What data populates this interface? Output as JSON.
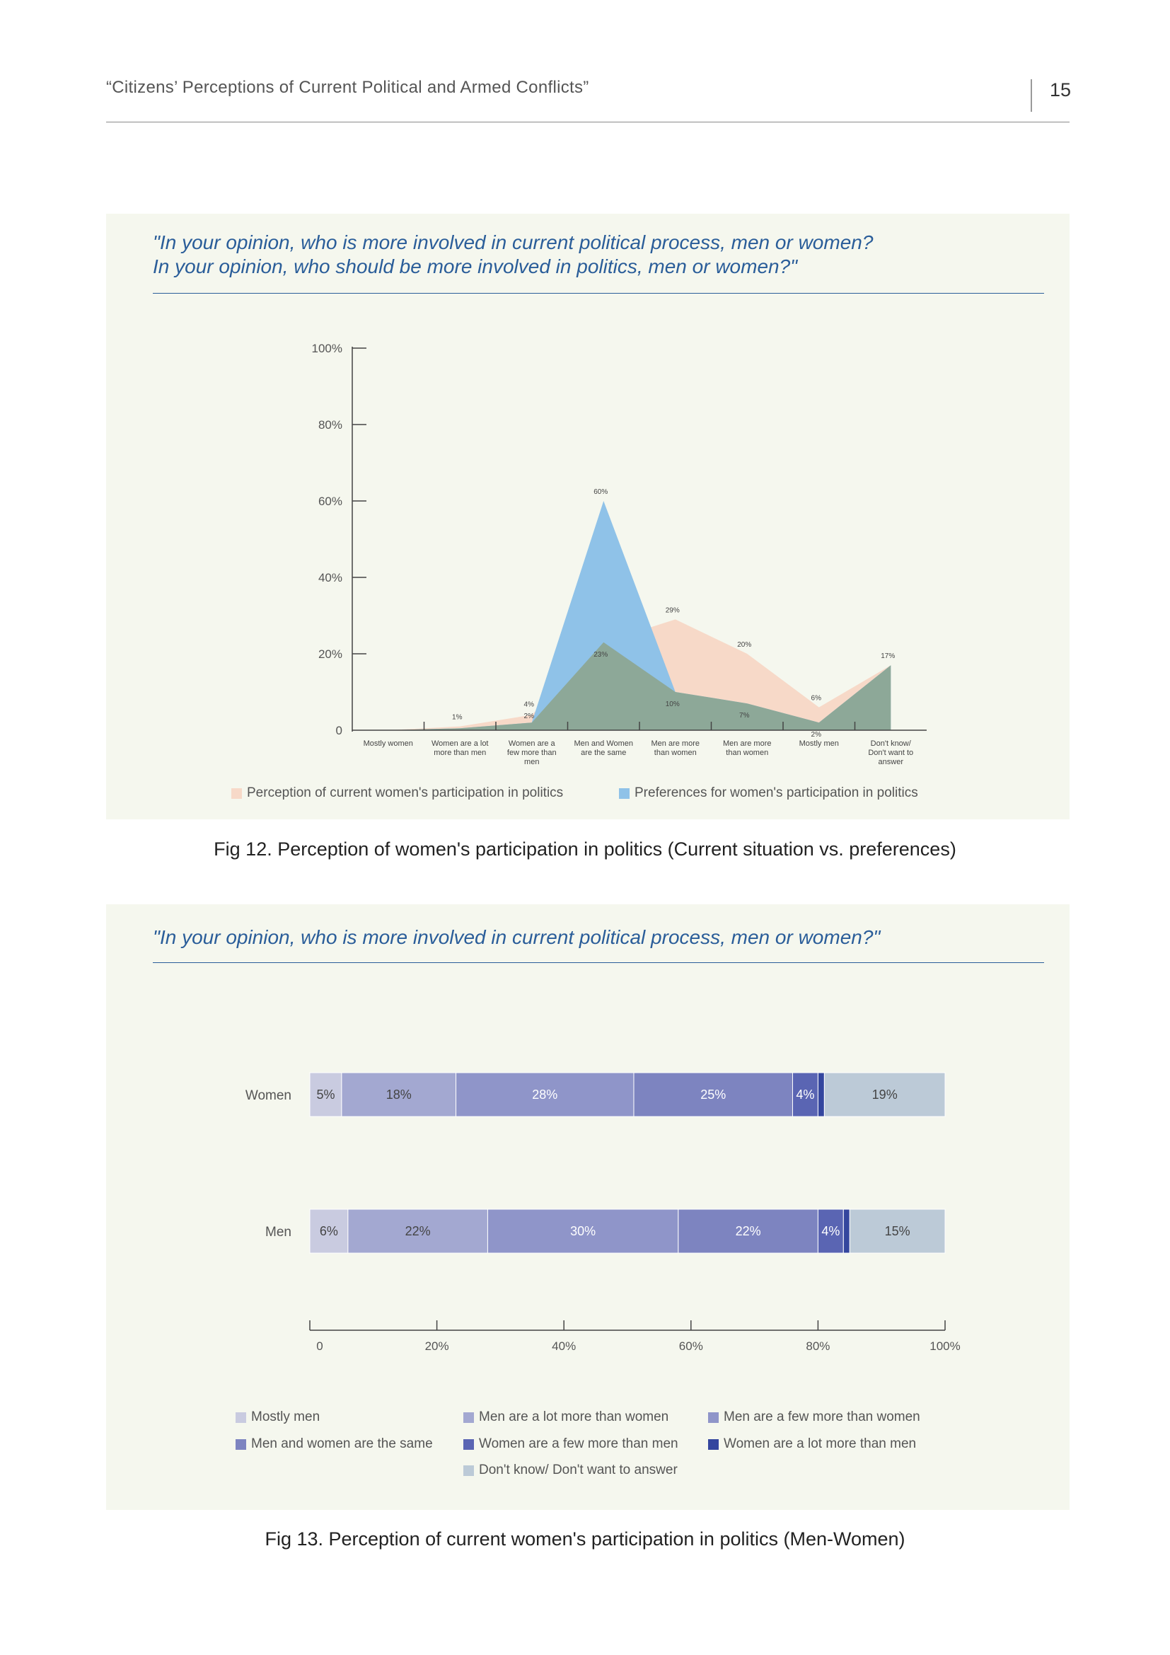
{
  "header": {
    "title": "“Citizens’ Perceptions of Current Political and Armed Conflicts”",
    "page_number": "15"
  },
  "fig12": {
    "question_line1": "\"In your opinion, who is more involved in current political process, men or women?",
    "question_line2": "In your opinion, who should be more involved in politics, men or women?\"",
    "caption": "Fig 12. Perception of women's participation in politics (Current situation vs. preferences)"
  },
  "fig13": {
    "question": "\"In your opinion, who is more involved in current political process, men or women?\"",
    "caption": "Fig 13. Perception of current women's participation in politics (Men-Women)"
  },
  "chart_data": [
    {
      "type": "area",
      "ylim": [
        0,
        100
      ],
      "yticks": [
        "100%",
        "80%",
        "60%",
        "40%",
        "20%",
        "0"
      ],
      "ytick_values": [
        100,
        80,
        60,
        40,
        20,
        0
      ],
      "categories": [
        [
          "Mostly women"
        ],
        [
          "Women are a lot",
          "more than men"
        ],
        [
          "Women are a",
          "few more than",
          "men"
        ],
        [
          "Men and Women",
          "are the same"
        ],
        [
          "Men are more",
          "than women"
        ],
        [
          "Men are more",
          "than women"
        ],
        [
          "Mostly men"
        ],
        [
          "Don't know/",
          "Don't want to",
          "answer"
        ]
      ],
      "series": [
        {
          "name": "Perception of current women's participation in politics",
          "color": "#f7d9c8",
          "values": [
            0,
            1,
            4,
            23,
            29,
            20,
            6,
            17
          ],
          "labels": [
            "",
            "1%",
            "4%",
            "23%",
            "29%",
            "20%",
            "6%",
            "17%"
          ]
        },
        {
          "name": "Preferences for women's participation in politics",
          "color": "#8fc2e8",
          "values": [
            0,
            0.5,
            2,
            60,
            10,
            7,
            2,
            17
          ],
          "labels": [
            "",
            "",
            "2%",
            "60%",
            "10%",
            "7%",
            "2%",
            ""
          ]
        }
      ],
      "overlap_color": "#8da898",
      "legend_position": "bottom"
    },
    {
      "type": "bar",
      "orientation": "horizontal",
      "stacked": true,
      "xlim": [
        0,
        100
      ],
      "xticks": [
        "0",
        "20%",
        "40%",
        "60%",
        "80%",
        "100%"
      ],
      "xtick_values": [
        0,
        20,
        40,
        60,
        80,
        100
      ],
      "categories": [
        "Women",
        "Men"
      ],
      "series": [
        {
          "name": "Mostly men",
          "color": "#c9cbe0",
          "values": [
            5,
            6
          ],
          "labels": [
            "5%",
            "6%"
          ],
          "text_color": "#444"
        },
        {
          "name": "Men are a lot more than women",
          "color": "#a3a8d1",
          "values": [
            18,
            22
          ],
          "labels": [
            "18%",
            "22%"
          ],
          "text_color": "#444"
        },
        {
          "name": "Men are a few more than women",
          "color": "#8f95c9",
          "values": [
            28,
            30
          ],
          "labels": [
            "28%",
            "30%"
          ],
          "text_color": "#ffffff"
        },
        {
          "name": "Men and women are the same",
          "color": "#7d84c0",
          "values": [
            25,
            22
          ],
          "labels": [
            "25%",
            "22%"
          ],
          "text_color": "#ffffff"
        },
        {
          "name": "Women are a few more than men",
          "color": "#5a65b3",
          "values": [
            4,
            4
          ],
          "labels": [
            "4%",
            "4%"
          ],
          "text_color": "#ffffff"
        },
        {
          "name": "Women are a lot more than men",
          "color": "#34469e",
          "values": [
            1,
            1
          ],
          "labels": [
            "",
            ""
          ],
          "text_color": "#ffffff"
        },
        {
          "name": "Don't know/ Don't want to answer",
          "color": "#bccad7",
          "values": [
            19,
            15
          ],
          "labels": [
            "19%",
            "15%"
          ],
          "text_color": "#444"
        }
      ],
      "legend_position": "bottom"
    }
  ]
}
